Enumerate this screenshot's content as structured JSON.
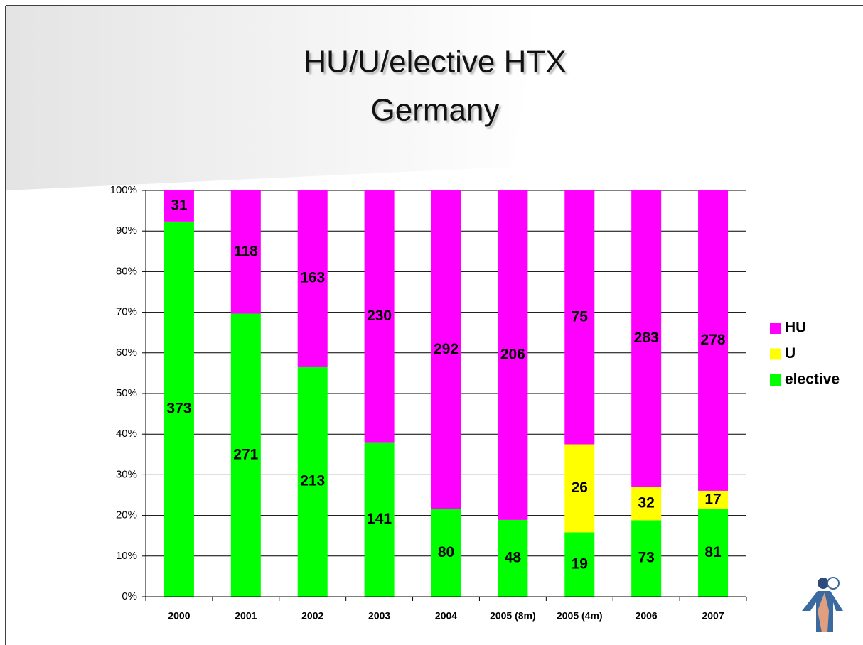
{
  "chart_data": {
    "type": "stacked_percent_bar",
    "title": [
      "HU/U/elective HTX",
      "Germany"
    ],
    "categories": [
      "2000",
      "2001",
      "2002",
      "2003",
      "2004",
      "2005 (8m)",
      "2005 (4m)",
      "2006",
      "2007"
    ],
    "series": [
      {
        "name": "elective",
        "color": "#00ff00",
        "values": [
          373,
          271,
          213,
          141,
          80,
          48,
          19,
          73,
          81
        ]
      },
      {
        "name": "U",
        "color": "#ffff00",
        "values": [
          null,
          null,
          null,
          null,
          null,
          null,
          26,
          32,
          17
        ]
      },
      {
        "name": "HU",
        "color": "#ff00ff",
        "values": [
          31,
          118,
          163,
          230,
          292,
          206,
          75,
          283,
          278
        ]
      }
    ],
    "ylim": [
      0,
      100
    ],
    "yticks": [
      {
        "value": 0,
        "label": "0%"
      },
      {
        "value": 10,
        "label": "10%"
      },
      {
        "value": 20,
        "label": "20%"
      },
      {
        "value": 30,
        "label": "30%"
      },
      {
        "value": 40,
        "label": "40%"
      },
      {
        "value": 50,
        "label": "50%"
      },
      {
        "value": 60,
        "label": "60%"
      },
      {
        "value": 70,
        "label": "70%"
      },
      {
        "value": 80,
        "label": "80%"
      },
      {
        "value": 90,
        "label": "90%"
      },
      {
        "value": 100,
        "label": "100%"
      }
    ],
    "grid": true,
    "legend": "right"
  }
}
